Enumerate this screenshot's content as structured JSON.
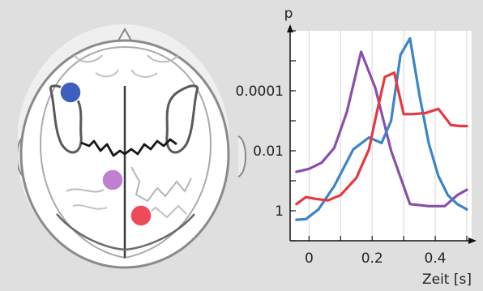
{
  "chart_data": {
    "type": "line",
    "ylabel": "p",
    "xlabel": "Zeit [s]",
    "x_ticks": [
      0,
      0.2,
      0.4
    ],
    "x_tick_labels": [
      "0",
      "0.2",
      "0.4"
    ],
    "y_ticks": [
      0.0001,
      0.01,
      1
    ],
    "y_tick_labels": [
      "0.0001",
      "0.01",
      "1"
    ],
    "y_scale": "log-inverted",
    "xlim": [
      -0.06,
      0.5
    ],
    "ylim": [
      10,
      1e-06
    ],
    "grid": "vertical",
    "series": [
      {
        "color": "#8a4fa8",
        "x": [
          -0.04,
          0.0,
          0.04,
          0.08,
          0.12,
          0.165,
          0.21,
          0.26,
          0.32,
          0.38,
          0.43,
          0.47,
          0.5
        ],
        "y": [
          0.05,
          0.04,
          0.025,
          0.008,
          0.0005,
          5e-06,
          8e-05,
          0.01,
          0.6,
          0.7,
          0.7,
          0.3,
          0.2
        ]
      },
      {
        "color": "#3c84c8",
        "x": [
          -0.04,
          -0.01,
          0.03,
          0.08,
          0.14,
          0.19,
          0.23,
          0.26,
          0.29,
          0.32,
          0.35,
          0.38,
          0.41,
          0.44,
          0.47,
          0.5
        ],
        "y": [
          2,
          1.9,
          0.9,
          0.15,
          0.009,
          0.0036,
          0.0055,
          0.001,
          6.3e-06,
          1.8e-06,
          0.00014,
          0.006,
          0.07,
          0.3,
          0.6,
          0.9
        ]
      },
      {
        "color": "#e33a41",
        "x": [
          -0.04,
          -0.01,
          0.02,
          0.06,
          0.1,
          0.15,
          0.19,
          0.21,
          0.24,
          0.27,
          0.3,
          0.33,
          0.37,
          0.41,
          0.45,
          0.48,
          0.5
        ],
        "y": [
          0.6,
          0.35,
          0.4,
          0.45,
          0.3,
          0.08,
          0.009,
          0.0009,
          3.5e-05,
          2.5e-05,
          0.0006,
          0.0006,
          0.00055,
          0.0004,
          0.0014,
          0.0015,
          0.0015
        ]
      }
    ]
  },
  "figure": {
    "electrodes": [
      {
        "color": "#3f5fbf",
        "label": ""
      },
      {
        "color": "#c07fd0",
        "label": ""
      },
      {
        "color": "#ef4a57",
        "label": ""
      }
    ]
  }
}
